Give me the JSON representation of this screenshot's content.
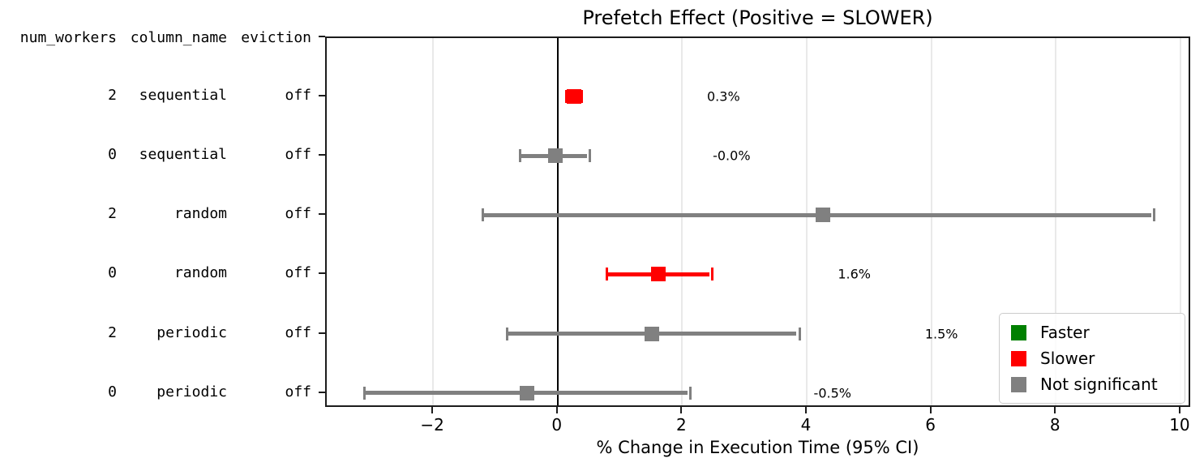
{
  "chart_data": {
    "type": "scatter",
    "variant": "forest-plot-errorbar",
    "title": "Prefetch Effect (Positive = SLOWER)",
    "xlabel": "% Change in Execution Time (95% CI)",
    "xlim": [
      -3.72,
      10.17
    ],
    "grid": "vertical light-gray lines at each x tick; solid black vertical line at x=0",
    "x_ticks": [
      {
        "value": -2,
        "label": "−2"
      },
      {
        "value": 0,
        "label": "0"
      },
      {
        "value": 2,
        "label": "2"
      },
      {
        "value": 4,
        "label": "4"
      },
      {
        "value": 6,
        "label": "6"
      },
      {
        "value": 8,
        "label": "8"
      },
      {
        "value": 10,
        "label": "10"
      }
    ],
    "y_header": [
      "num_workers",
      "column_name",
      "eviction"
    ],
    "rows": [
      {
        "num_workers": "2",
        "column_name": "sequential",
        "eviction": "off",
        "mean": 0.25,
        "ci_low": 0.15,
        "ci_high": 0.35,
        "label": "0.3%",
        "color": "#ff0000",
        "significance": "slower"
      },
      {
        "num_workers": "0",
        "column_name": "sequential",
        "eviction": "off",
        "mean": -0.05,
        "ci_low": -0.6,
        "ci_high": 0.48,
        "label": "-0.0%",
        "color": "#808080",
        "significance": "not_significant"
      },
      {
        "num_workers": "2",
        "column_name": "random",
        "eviction": "off",
        "mean": 4.25,
        "ci_low": -1.2,
        "ci_high": 9.55,
        "label": "",
        "color": "#808080",
        "significance": "not_significant"
      },
      {
        "num_workers": "0",
        "column_name": "random",
        "eviction": "off",
        "mean": 1.6,
        "ci_low": 0.8,
        "ci_high": 2.45,
        "label": "1.6%",
        "color": "#ff0000",
        "significance": "slower"
      },
      {
        "num_workers": "2",
        "column_name": "periodic",
        "eviction": "off",
        "mean": 1.5,
        "ci_low": -0.8,
        "ci_high": 3.85,
        "label": "1.5%",
        "color": "#808080",
        "significance": "not_significant"
      },
      {
        "num_workers": "0",
        "column_name": "periodic",
        "eviction": "off",
        "mean": -0.5,
        "ci_low": -3.1,
        "ci_high": 2.1,
        "label": "-0.5%",
        "color": "#808080",
        "significance": "not_significant"
      }
    ],
    "annotation_offset_data_units": 2.3,
    "legend": {
      "position": "lower right",
      "items": [
        {
          "label": "Faster",
          "color": "#008000"
        },
        {
          "label": "Slower",
          "color": "#ff0000"
        },
        {
          "label": "Not significant",
          "color": "#808080"
        }
      ]
    },
    "colors": {
      "zero_line": "#000000",
      "gridline": "#e9e9e9",
      "spine": "#1c1c1c",
      "text": "#000000"
    }
  }
}
